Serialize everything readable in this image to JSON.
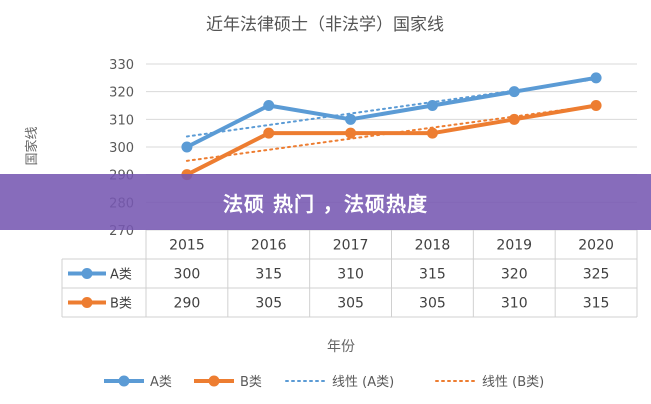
{
  "banner": {
    "text": "法硕 热门 ，法硕热度"
  },
  "chart_data": {
    "type": "line",
    "title": "近年法律硕士（非法学）国家线",
    "xlabel": "年份",
    "ylabel": "国家线",
    "categories": [
      "2015",
      "2016",
      "2017",
      "2018",
      "2019",
      "2020"
    ],
    "ylim": [
      270,
      330
    ],
    "yticks": [
      270,
      280,
      290,
      300,
      310,
      320,
      330
    ],
    "grid": true,
    "legend_position": "bottom",
    "series": [
      {
        "name": "A类",
        "values": [
          300,
          315,
          310,
          315,
          320,
          325
        ],
        "color": "#5b9bd5"
      },
      {
        "name": "B类",
        "values": [
          290,
          305,
          305,
          305,
          310,
          315
        ],
        "color": "#ed7d31"
      }
    ],
    "trendlines": [
      {
        "name": "线性 (A类)",
        "of": "A类",
        "color": "#5b9bd5"
      },
      {
        "name": "线性 (B类)",
        "of": "B类",
        "color": "#ed7d31"
      }
    ]
  }
}
